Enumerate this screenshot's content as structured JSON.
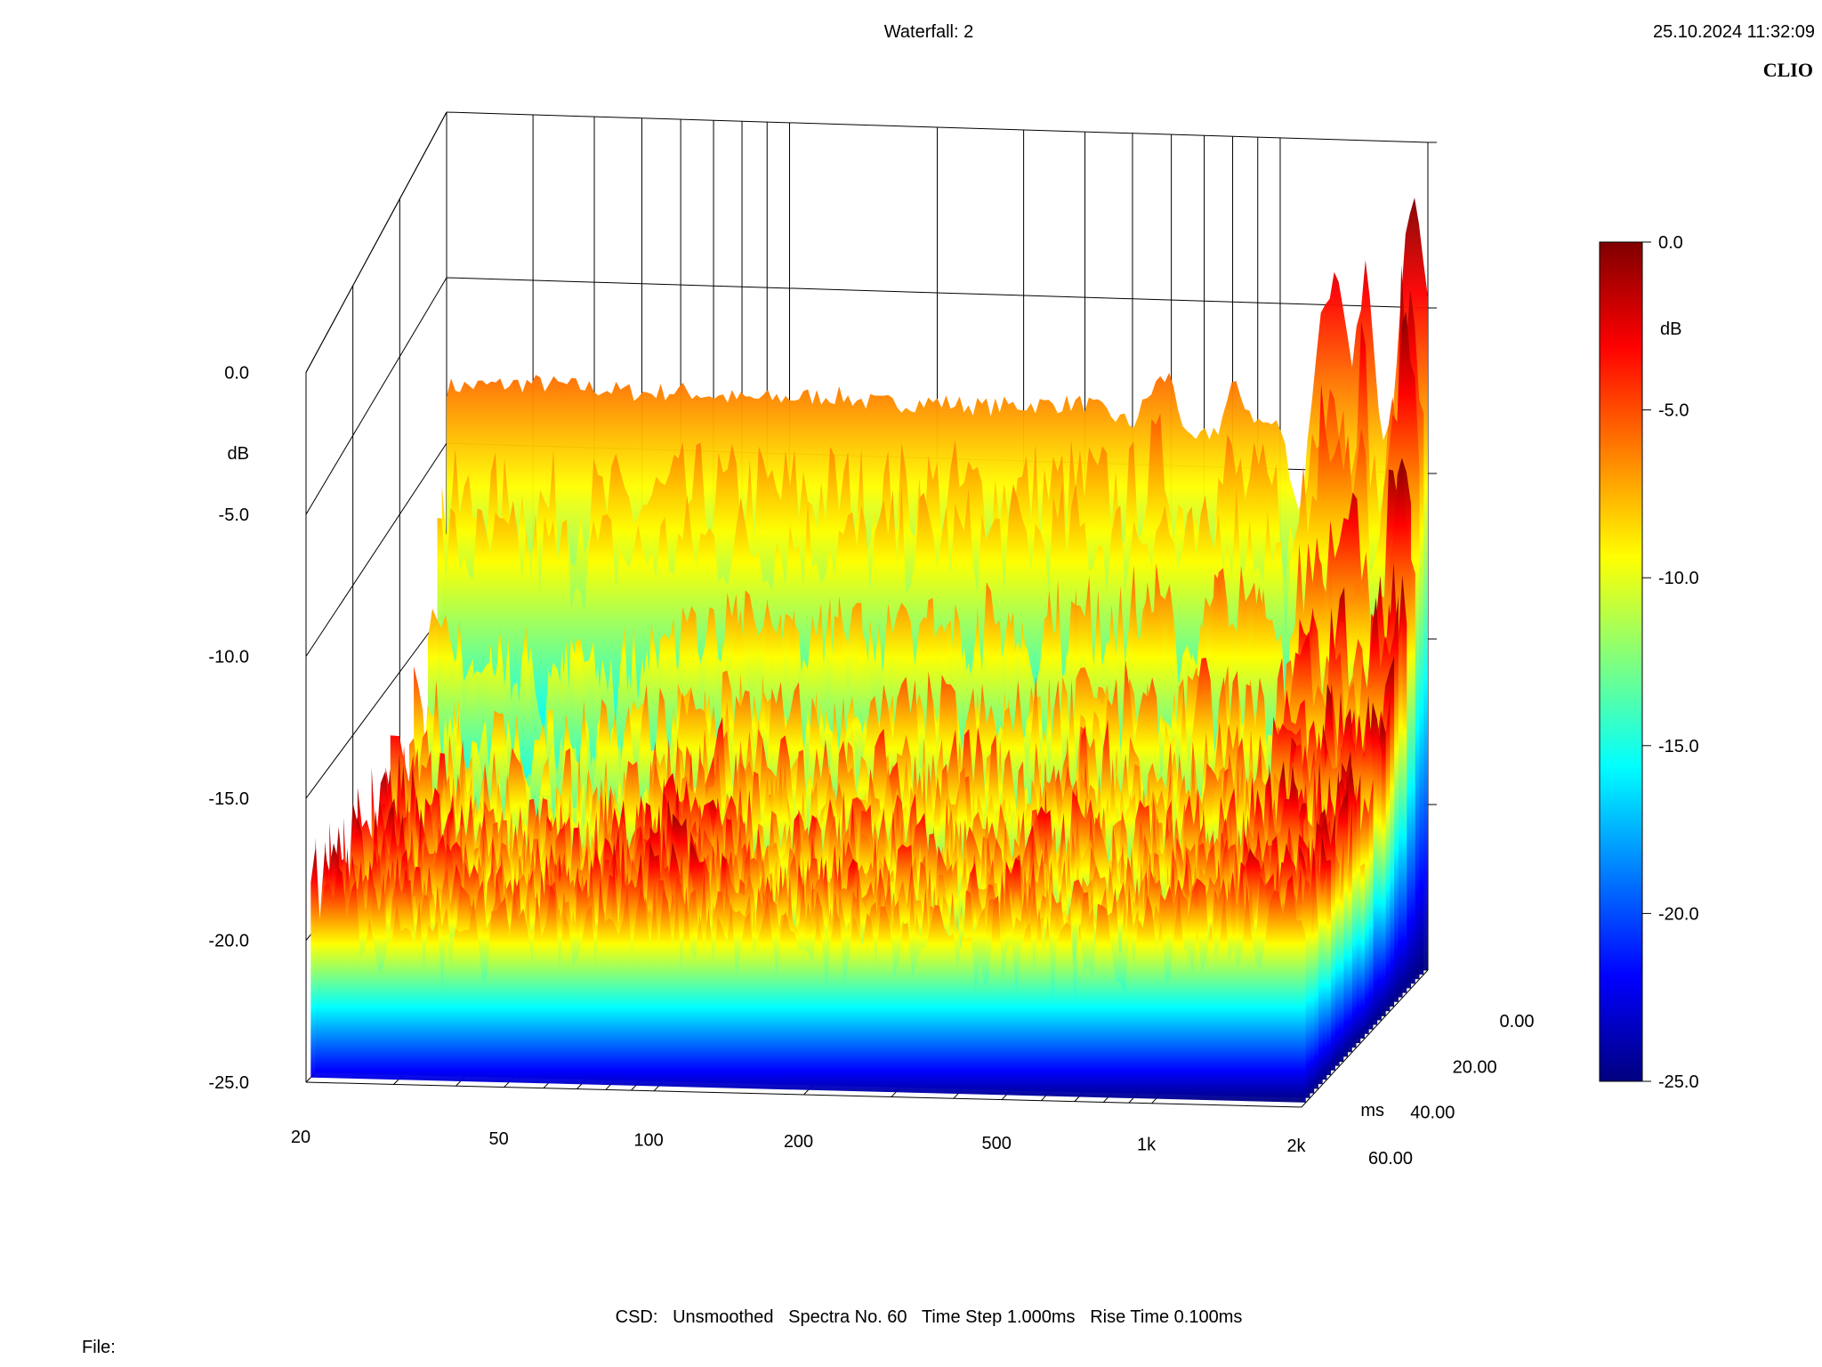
{
  "header": {
    "title": "Waterfall: 2",
    "timestamp": "25.10.2024 11:32:09",
    "brand": "CLIO"
  },
  "footer": {
    "settings": "CSD:   Unsmoothed   Spectra No. 60   Time Step 1.000ms   Rise Time 0.100ms",
    "file_label": "File:"
  },
  "colors": {
    "axes": "#000000",
    "background": "#ffffff",
    "colormap": [
      "#00007f",
      "#0000ff",
      "#007fff",
      "#00ffff",
      "#7fff7f",
      "#ffff00",
      "#ff7f00",
      "#ff0000",
      "#7f0000"
    ]
  },
  "chart_data": {
    "type": "waterfall",
    "title": "Waterfall: 2",
    "x_axis": {
      "scale": "log",
      "range": [
        20,
        2000
      ],
      "ticks": [
        "20",
        "50",
        "100",
        "200",
        "500",
        "1k",
        "2k"
      ]
    },
    "y_axis": {
      "label": "dB",
      "range": [
        -25,
        0
      ],
      "ticks": [
        "0.0",
        "-5.0",
        "-10.0",
        "-15.0",
        "-20.0",
        "-25.0"
      ]
    },
    "z_axis": {
      "label": "ms",
      "range": [
        0,
        60
      ],
      "ticks": [
        "0.00",
        "20.00",
        "40.00",
        "60.00"
      ]
    },
    "colorbar": {
      "label": "dB",
      "range": [
        -25,
        0
      ],
      "ticks": [
        "0.0",
        "-5.0",
        "-10.0",
        "-15.0",
        "-20.0",
        "-25.0"
      ]
    },
    "spectra_count": 60,
    "time_step_ms": 1.0,
    "rise_time_ms": 0.1,
    "first_spectrum": {
      "freq": [
        20,
        25,
        30,
        40,
        50,
        60,
        80,
        100,
        125,
        150,
        200,
        250,
        300,
        400,
        500,
        560,
        600,
        650,
        700,
        750,
        800,
        900,
        1000,
        1100,
        1200,
        1300,
        1400,
        1500,
        1600,
        1700,
        1800,
        1900,
        2000
      ],
      "db": [
        -8.3,
        -8.2,
        -8.1,
        -8.2,
        -8.3,
        -8.2,
        -8.4,
        -8.3,
        -8.2,
        -8.4,
        -8.3,
        -8.4,
        -8.3,
        -8.2,
        -8.8,
        -7.5,
        -7.3,
        -9.4,
        -9.1,
        -8.8,
        -7.5,
        -8.6,
        -8.7,
        -11.5,
        -5.5,
        -4.0,
        -7.0,
        -3.5,
        -9.0,
        -8.0,
        -2.5,
        -1.8,
        -4.5
      ]
    },
    "decay_floor_db": [
      -18.5,
      -19.5,
      -20.0,
      -20.0,
      -19.5,
      -19.0,
      -19.5,
      -20.0,
      -19.5,
      -19.8,
      -20.0,
      -19.5,
      -20.2,
      -19.8,
      -19.5,
      -19.0,
      -18.5
    ]
  }
}
